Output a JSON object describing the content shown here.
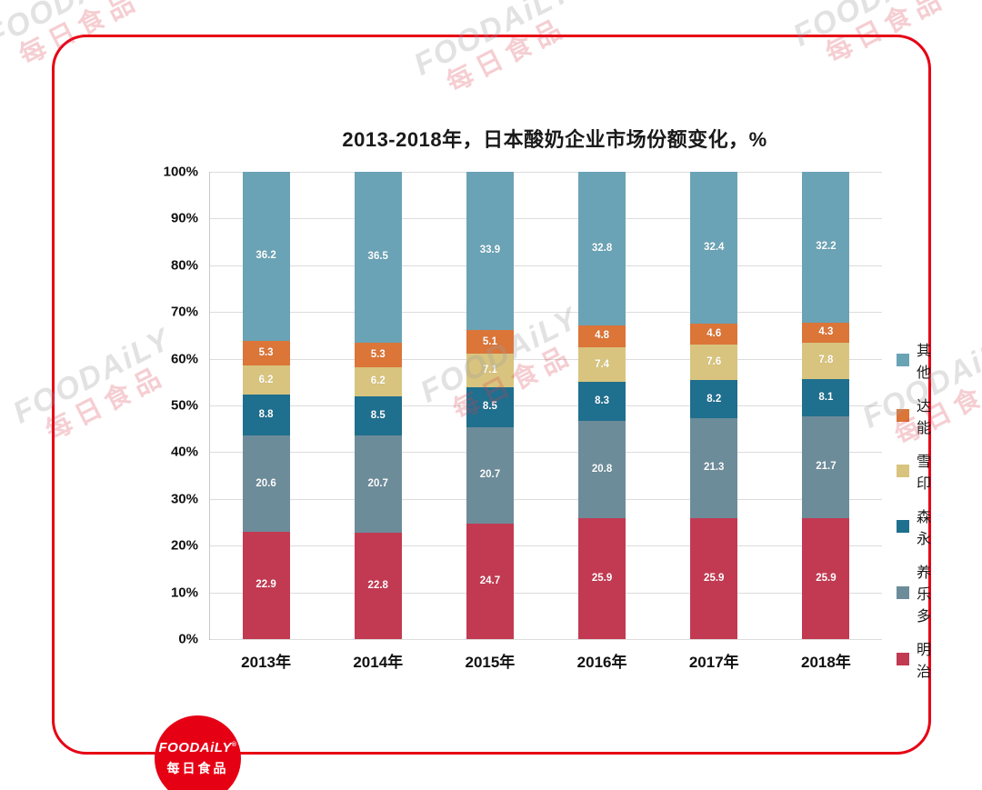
{
  "title": "2013-2018年，日本酸奶企业市场份额变化，%",
  "watermark": {
    "line1": "FOODAiLY",
    "line2": "每日食品"
  },
  "logo": {
    "line1": "FOODAiLY",
    "reg": "®",
    "line2": "每日食品"
  },
  "chart_data": {
    "type": "bar",
    "stacked": true,
    "title": "2013-2018年，日本酸奶企业市场份额变化，%",
    "categories": [
      "2013年",
      "2014年",
      "2015年",
      "2016年",
      "2017年",
      "2018年"
    ],
    "series": [
      {
        "name": "明治",
        "color": "#c23a52",
        "values": [
          22.9,
          22.8,
          24.7,
          25.9,
          25.9,
          25.9
        ]
      },
      {
        "name": "养乐多",
        "color": "#6d8c9a",
        "values": [
          20.6,
          20.7,
          20.7,
          20.8,
          21.3,
          21.7
        ]
      },
      {
        "name": "森永",
        "color": "#1f6f8e",
        "values": [
          8.8,
          8.5,
          8.5,
          8.3,
          8.2,
          8.1
        ]
      },
      {
        "name": "雪印",
        "color": "#d8c47e",
        "values": [
          6.2,
          6.2,
          7.1,
          7.4,
          7.6,
          7.8
        ]
      },
      {
        "name": "达能",
        "color": "#db7538",
        "values": [
          5.3,
          5.3,
          5.1,
          4.8,
          4.6,
          4.3
        ]
      },
      {
        "name": "其他",
        "color": "#6aa3b5",
        "values": [
          36.2,
          36.5,
          33.9,
          32.8,
          32.4,
          32.2
        ]
      }
    ],
    "legend_order": [
      "其他",
      "达能",
      "雪印",
      "森永",
      "养乐多",
      "明治"
    ],
    "y_ticks": [
      "100%",
      "90%",
      "80%",
      "70%",
      "60%",
      "50%",
      "40%",
      "30%",
      "20%",
      "10%",
      "0%"
    ],
    "ylim": [
      0,
      100
    ],
    "grid": true,
    "legend_position": "right",
    "value_label_format": "one-decimal"
  }
}
